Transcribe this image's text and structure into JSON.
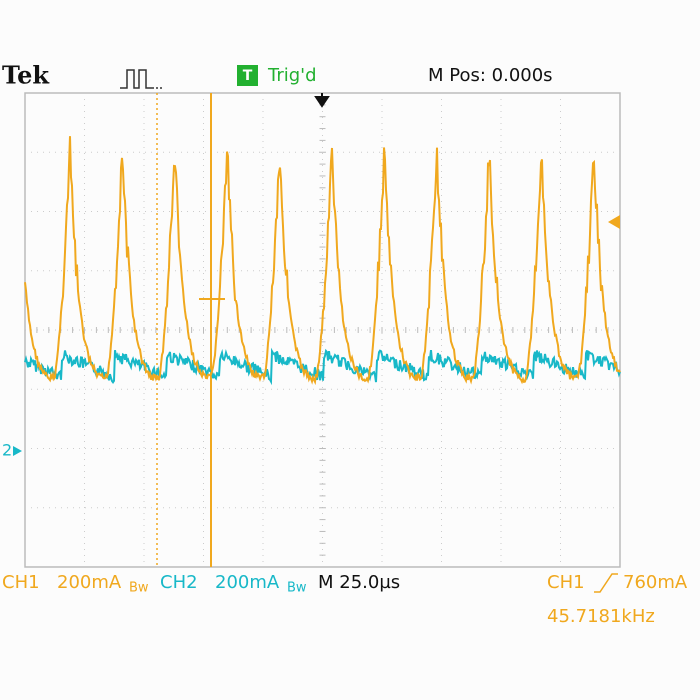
{
  "header": {
    "brand": "Tek",
    "trigger_icon": "T",
    "trigger_state": "Trig'd",
    "position": "M Pos: 0.000s"
  },
  "markers": {
    "ch2": "2"
  },
  "footer": {
    "ch1": {
      "label": "CH1",
      "scale": "200mA",
      "bandwidth": "Bw"
    },
    "ch2": {
      "label": "CH2",
      "scale": "200mA",
      "bandwidth": "Bw"
    },
    "timebase": "M 25.0µs",
    "trigger": {
      "source": "CH1",
      "level": "760mA"
    },
    "frequency": "45.7181kHz"
  }
}
